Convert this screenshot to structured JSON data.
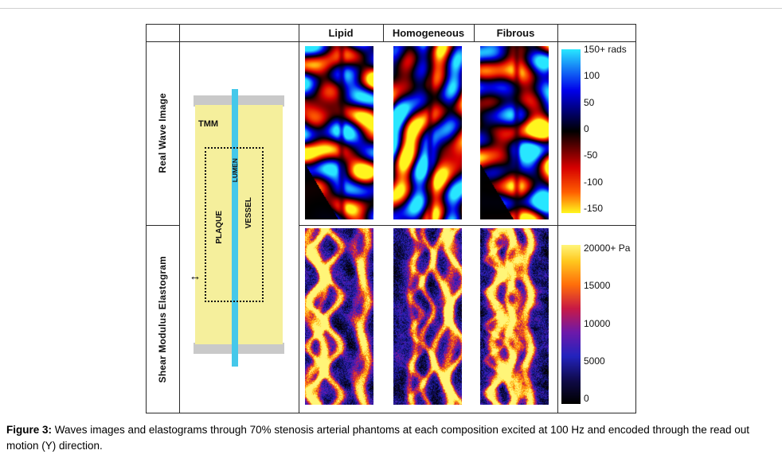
{
  "figure_caption": {
    "label": "Figure 3:",
    "text": "Waves images and elastograms through 70% stenosis arterial phantoms at each composition excited at 100 Hz and encoded through the read out motion (Y) direction."
  },
  "grid": {
    "column_headers": [
      "Lipid",
      "Homogeneous",
      "Fibrous"
    ],
    "row_labels": [
      "Real Wave Image",
      "Shear Modulus Elastogram"
    ]
  },
  "phantom_schematic": {
    "tmm_label": "TMM",
    "lumen_label": "LUMEN",
    "plaque_label": "PLAQUE",
    "vessel_label": "VESSEL",
    "excitation_arrow": "↔",
    "colors": {
      "body": "#f5ef9c",
      "frame": "#c9c9c9",
      "lumen": "#45c8ea"
    }
  },
  "colorbars": {
    "wave": {
      "top_label": "150+ rads",
      "ticks": [
        "100",
        "50",
        "0",
        "-50",
        "-100",
        "-150"
      ]
    },
    "elastogram": {
      "top_label": "20000+ Pa",
      "ticks": [
        "15000",
        "10000",
        "5000",
        "0"
      ]
    }
  },
  "chart_data": {
    "type": "heatmap",
    "title": "Waves images and elastograms through 70% stenosis arterial phantoms",
    "panels": [
      {
        "row": "Real Wave Image",
        "column": "Lipid",
        "units": "rads",
        "range": [
          -150,
          150
        ]
      },
      {
        "row": "Real Wave Image",
        "column": "Homogeneous",
        "units": "rads",
        "range": [
          -150,
          150
        ]
      },
      {
        "row": "Real Wave Image",
        "column": "Fibrous",
        "units": "rads",
        "range": [
          -150,
          150
        ]
      },
      {
        "row": "Shear Modulus Elastogram",
        "column": "Lipid",
        "units": "Pa",
        "range": [
          0,
          20000
        ]
      },
      {
        "row": "Shear Modulus Elastogram",
        "column": "Homogeneous",
        "units": "Pa",
        "range": [
          0,
          20000
        ]
      },
      {
        "row": "Shear Modulus Elastogram",
        "column": "Fibrous",
        "units": "Pa",
        "range": [
          0,
          20000
        ]
      }
    ],
    "legend_position": "right"
  },
  "panels": [
    {
      "kind": "wave",
      "seed": 3,
      "cut": true
    },
    {
      "kind": "wave",
      "seed": 8,
      "cut": false
    },
    {
      "kind": "wave",
      "seed": 14,
      "cut": true
    },
    {
      "kind": "elastogram",
      "seed": 21
    },
    {
      "kind": "elastogram",
      "seed": 34
    },
    {
      "kind": "elastogram",
      "seed": 55
    }
  ]
}
